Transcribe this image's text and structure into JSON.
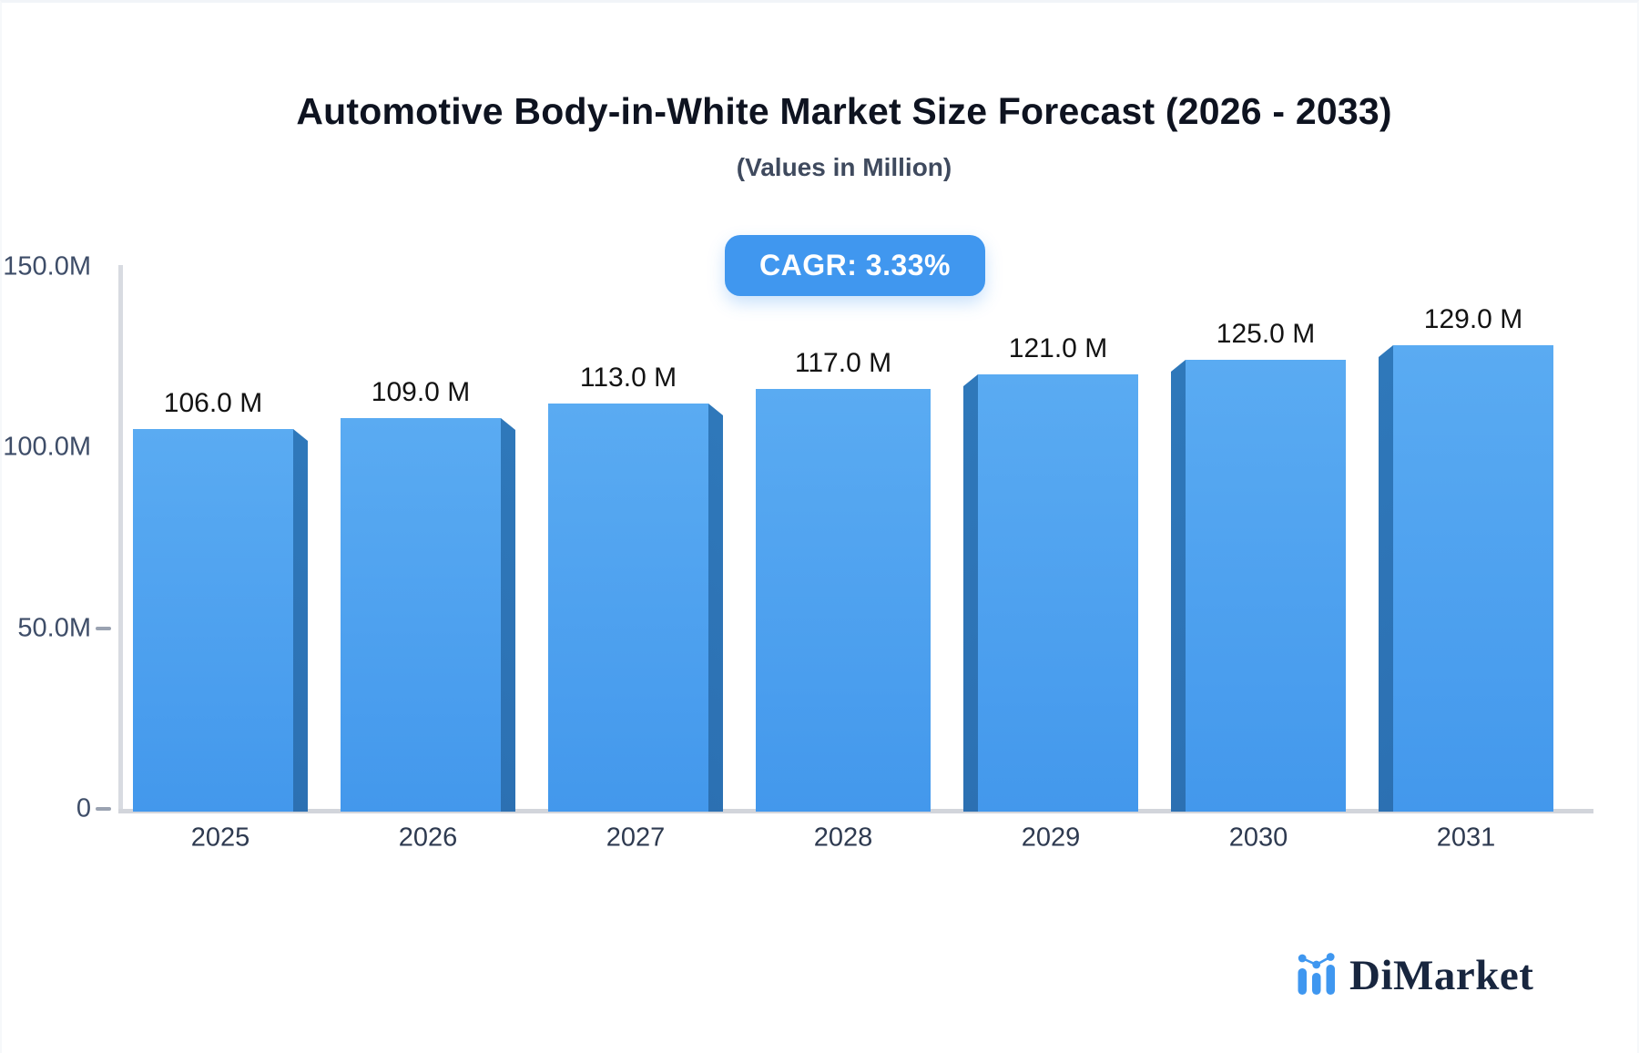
{
  "title": "Automotive Body-in-White Market Size Forecast (2026 - 2033)",
  "subtitle": "(Values in Million)",
  "badge": {
    "label": "CAGR: 3.33%",
    "bg": "#4097ef"
  },
  "watermark": {
    "brand": "DiMarket",
    "icon": "mini-bar-line-chart-icon",
    "icon_color": "#3f97f0",
    "text_color": "#18263f"
  },
  "chart_data": {
    "type": "bar",
    "categories": [
      "2025",
      "2026",
      "2027",
      "2028",
      "2029",
      "2030",
      "2031"
    ],
    "values": [
      106,
      109,
      113,
      117,
      121,
      125,
      129
    ],
    "bar_labels": [
      "106.0 M",
      "109.0 M",
      "113.0 M",
      "117.0 M",
      "121.0 M",
      "125.0 M",
      "129.0 M"
    ],
    "unit": "Million",
    "title": "Automotive Body-in-White Market Size Forecast (2026 - 2033)",
    "xlabel": "",
    "ylabel": "",
    "ylim": [
      0,
      150
    ],
    "y_ticks": [
      {
        "label": "150.0M",
        "value": 150,
        "dash": false
      },
      {
        "label": "100.0M",
        "value": 100,
        "dash": false
      },
      {
        "label": "50.0M",
        "value": 50,
        "dash": true
      },
      {
        "label": "0",
        "value": 0,
        "dash": true
      }
    ],
    "grid": false,
    "legend": "none",
    "style": "3d-beveled-bars",
    "bar_face_color": "#4da3ef",
    "bar_side_color": "#2e76b8",
    "axis_color": "#d5d8de"
  }
}
